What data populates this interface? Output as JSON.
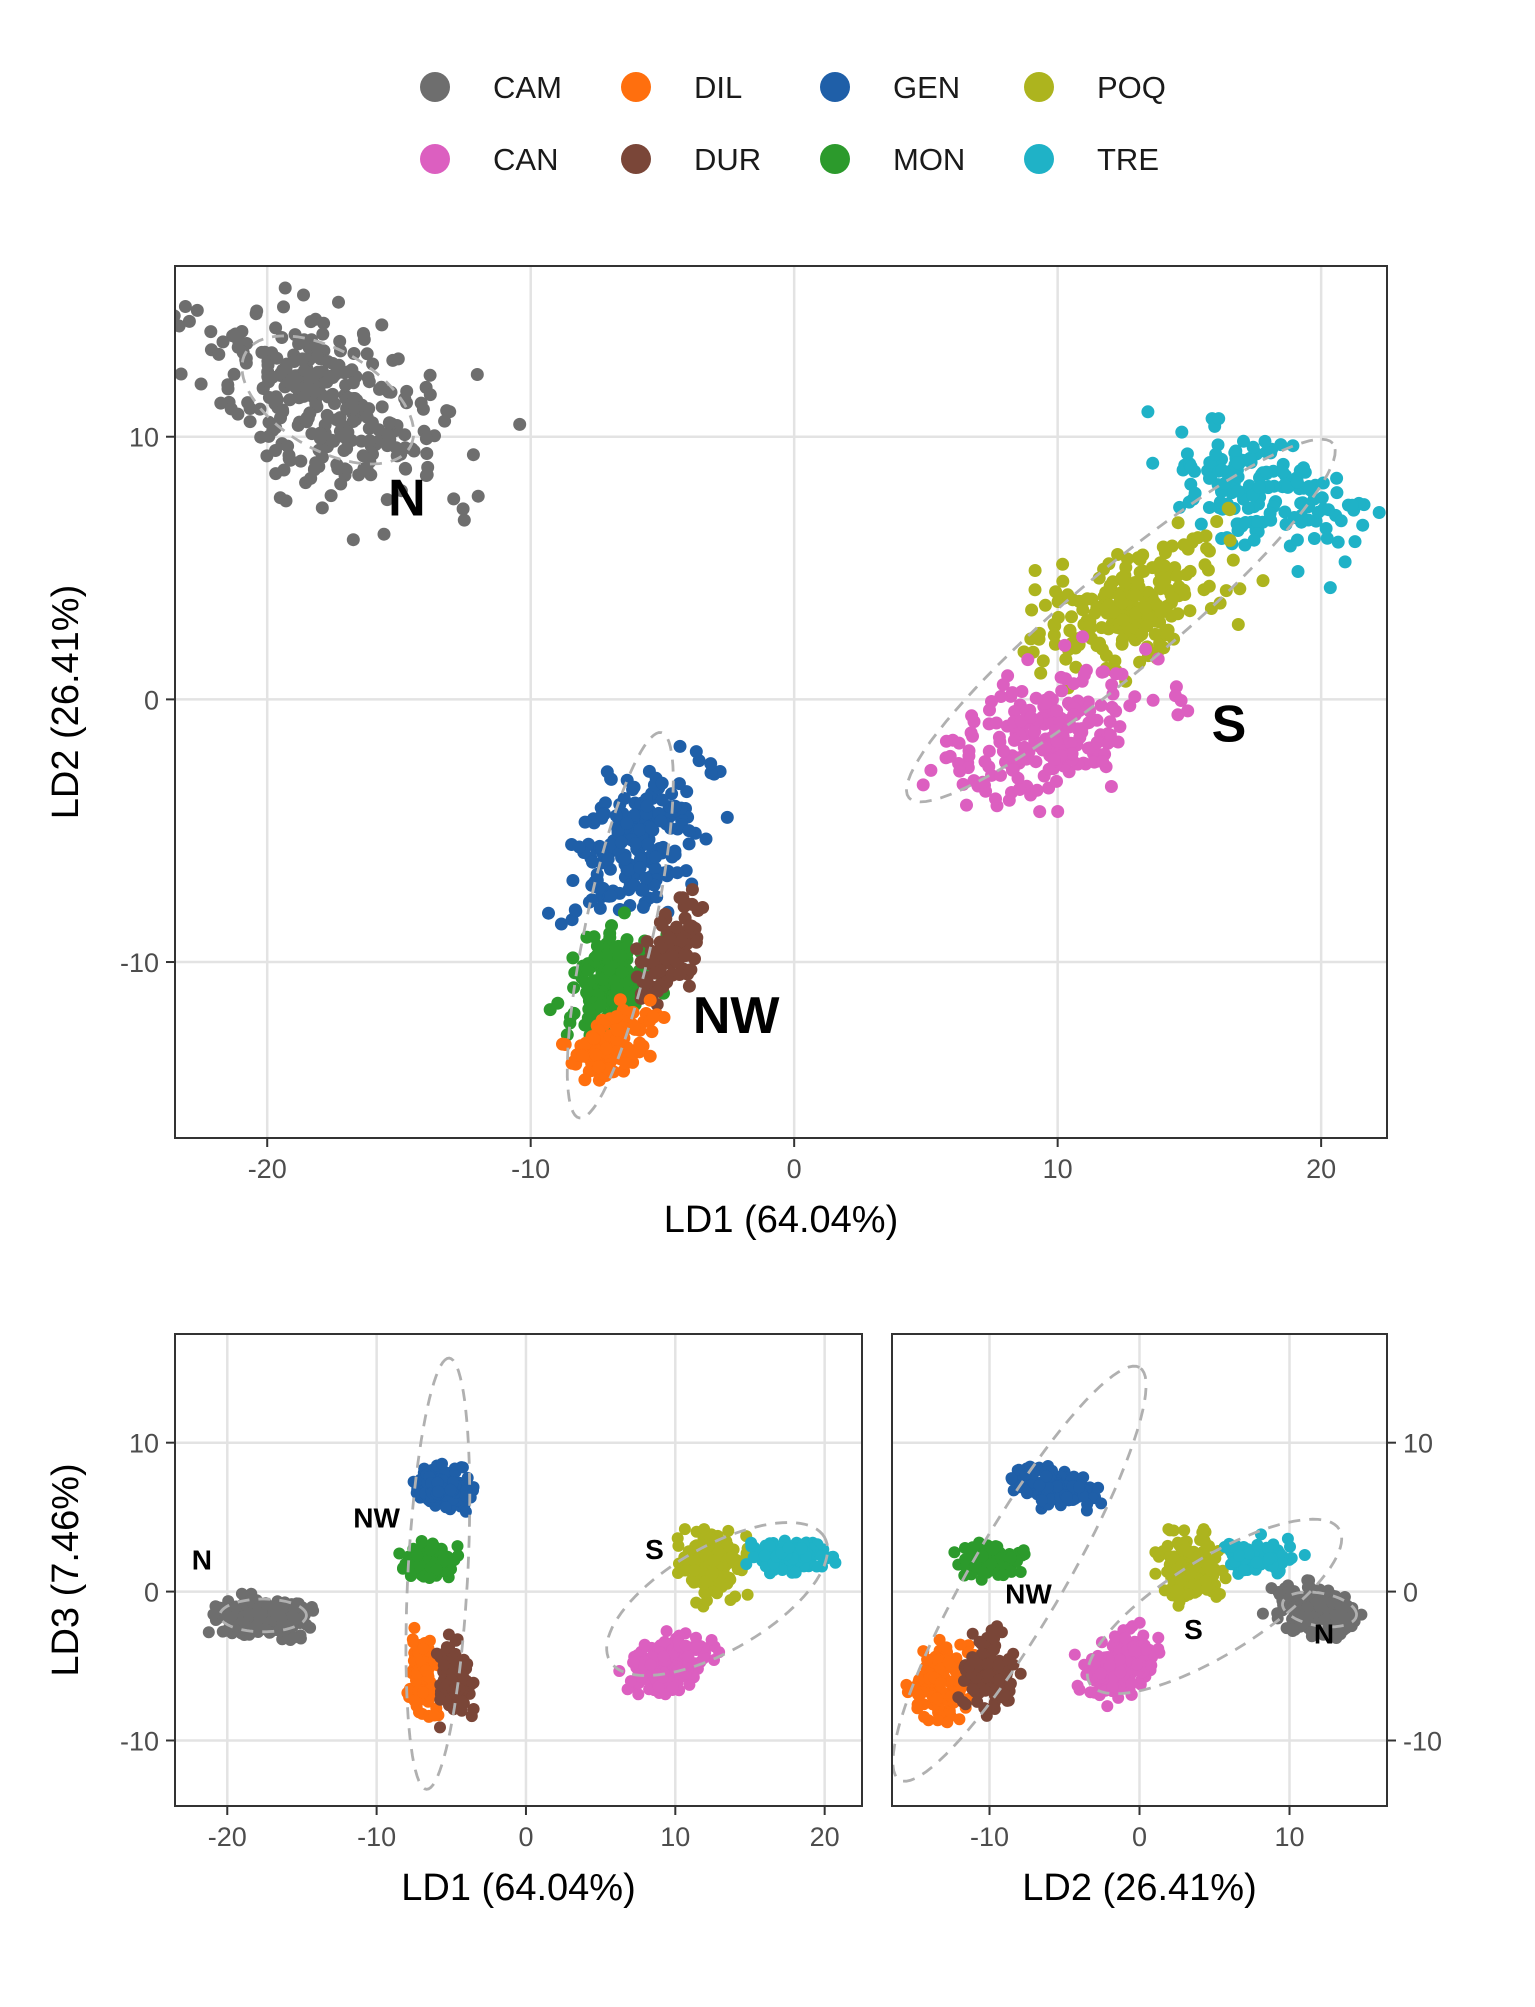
{
  "legend": {
    "position": "top",
    "entries": [
      {
        "label": "CAM",
        "color": "#6e6e6e"
      },
      {
        "label": "DIL",
        "color": "#ff6f0e"
      },
      {
        "label": "GEN",
        "color": "#1f5fa8"
      },
      {
        "label": "POQ",
        "color": "#adb41e"
      },
      {
        "label": "CAN",
        "color": "#dc5fc0"
      },
      {
        "label": "DUR",
        "color": "#7a4638"
      },
      {
        "label": "MON",
        "color": "#2c9a2c"
      },
      {
        "label": "TRE",
        "color": "#1fb2c7"
      }
    ]
  },
  "chart_data": [
    {
      "type": "scatter",
      "xlabel": "LD1 (64.04%)",
      "ylabel": "LD2 (26.41%)",
      "xlim": [
        -23.5,
        22.5
      ],
      "ylim": [
        -16.7,
        16.5
      ],
      "xticks": [
        -20,
        -10,
        0,
        10,
        20
      ],
      "yticks": [
        -10,
        0,
        10
      ],
      "grid": true,
      "clusters": [
        {
          "name": "CAM",
          "cx": -17.8,
          "cy": 11.2,
          "sx": 2.6,
          "sy": 1.5,
          "rot": -30,
          "n": 300
        },
        {
          "name": "TRE",
          "cx": 17.8,
          "cy": 7.9,
          "sx": 2.0,
          "sy": 1.0,
          "rot": -22,
          "n": 160
        },
        {
          "name": "POQ",
          "cx": 12.6,
          "cy": 3.5,
          "sx": 2.0,
          "sy": 1.0,
          "rot": 22,
          "n": 220
        },
        {
          "name": "CAN",
          "cx": 9.6,
          "cy": -1.3,
          "sx": 2.0,
          "sy": 1.1,
          "rot": 25,
          "n": 220
        },
        {
          "name": "GEN",
          "cx": -6.0,
          "cy": -5.5,
          "sx": 1.6,
          "sy": 1.0,
          "rot": 50,
          "n": 200
        },
        {
          "name": "MON",
          "cx": -7.0,
          "cy": -10.7,
          "sx": 1.0,
          "sy": 0.8,
          "rot": 60,
          "n": 150
        },
        {
          "name": "DUR",
          "cx": -4.6,
          "cy": -9.4,
          "sx": 0.9,
          "sy": 0.5,
          "rot": 60,
          "n": 100
        },
        {
          "name": "DIL",
          "cx": -7.0,
          "cy": -13.3,
          "sx": 1.0,
          "sy": 0.5,
          "rot": 35,
          "n": 120
        }
      ],
      "ellipses": [
        {
          "cx": -17.7,
          "cy": 11.4,
          "rx": 3.6,
          "ry": 1.9,
          "rot": -30
        },
        {
          "cx": 12.4,
          "cy": 3.0,
          "rx": 10.5,
          "ry": 1.9,
          "rot": 40
        },
        {
          "cx": -6.6,
          "cy": -8.6,
          "rx": 7.5,
          "ry": 1.3,
          "rot": 78
        }
      ],
      "annotations": [
        {
          "text": "N",
          "x": -14.7,
          "y": 7.0,
          "size": 52
        },
        {
          "text": "S",
          "x": 16.5,
          "y": -1.6,
          "size": 52
        },
        {
          "text": "NW",
          "x": -2.2,
          "y": -12.7,
          "size": 52
        }
      ]
    },
    {
      "type": "scatter",
      "xlabel": "LD1 (64.04%)",
      "ylabel": "LD3 (7.46%)",
      "xlim": [
        -23.5,
        22.5
      ],
      "ylim": [
        -14.4,
        17.3
      ],
      "xticks": [
        -20,
        -10,
        0,
        10,
        20
      ],
      "yticks": [
        -10,
        0,
        10
      ],
      "grid": true,
      "clusters": [
        {
          "name": "CAM",
          "cx": -17.6,
          "cy": -1.7,
          "sx": 1.4,
          "sy": 0.6,
          "rot": 0,
          "n": 220
        },
        {
          "name": "GEN",
          "cx": -5.6,
          "cy": 7.0,
          "sx": 0.9,
          "sy": 0.6,
          "rot": -10,
          "n": 170
        },
        {
          "name": "MON",
          "cx": -6.4,
          "cy": 2.1,
          "sx": 0.8,
          "sy": 0.5,
          "rot": 0,
          "n": 120
        },
        {
          "name": "DIL",
          "cx": -6.9,
          "cy": -5.6,
          "sx": 0.4,
          "sy": 1.3,
          "rot": 0,
          "n": 110
        },
        {
          "name": "DUR",
          "cx": -4.8,
          "cy": -6.0,
          "sx": 0.5,
          "sy": 1.2,
          "rot": 0,
          "n": 110
        },
        {
          "name": "POQ",
          "cx": 12.5,
          "cy": 1.6,
          "sx": 0.9,
          "sy": 1.0,
          "rot": 0,
          "n": 180
        },
        {
          "name": "TRE",
          "cx": 17.8,
          "cy": 2.3,
          "sx": 1.2,
          "sy": 0.5,
          "rot": 0,
          "n": 130
        },
        {
          "name": "CAN",
          "cx": 9.6,
          "cy": -4.8,
          "sx": 1.3,
          "sy": 0.8,
          "rot": 20,
          "n": 190
        }
      ],
      "ellipses": [
        {
          "cx": -17.6,
          "cy": -1.6,
          "rx": 2.9,
          "ry": 1.1,
          "rot": 0
        },
        {
          "cx": -5.9,
          "cy": 1.2,
          "rx": 14.5,
          "ry": 2.0,
          "rot": 87
        },
        {
          "cx": 12.8,
          "cy": -0.5,
          "rx": 8.3,
          "ry": 3.5,
          "rot": 30
        }
      ],
      "annotations": [
        {
          "text": "N",
          "x": -21.7,
          "y": 1.5,
          "size": 28
        },
        {
          "text": "NW",
          "x": -10.0,
          "y": 4.3,
          "size": 28
        },
        {
          "text": "S",
          "x": 8.6,
          "y": 2.2,
          "size": 28
        }
      ]
    },
    {
      "type": "scatter",
      "xlabel": "LD2 (26.41%)",
      "ylabel": "",
      "xlim": [
        -16.5,
        16.5
      ],
      "ylim": [
        -14.4,
        17.3
      ],
      "xticks": [
        -10,
        0,
        10
      ],
      "yticks": [
        -10,
        0,
        10
      ],
      "y_axis_side": "right",
      "grid": true,
      "clusters": [
        {
          "name": "GEN",
          "cx": -5.8,
          "cy": 7.0,
          "sx": 1.3,
          "sy": 0.6,
          "rot": -10,
          "n": 170
        },
        {
          "name": "MON",
          "cx": -10.0,
          "cy": 2.1,
          "sx": 0.9,
          "sy": 0.5,
          "rot": 0,
          "n": 120
        },
        {
          "name": "DIL",
          "cx": -13.2,
          "cy": -6.2,
          "sx": 0.9,
          "sy": 1.2,
          "rot": 0,
          "n": 120
        },
        {
          "name": "DUR",
          "cx": -10.0,
          "cy": -5.6,
          "sx": 0.8,
          "sy": 1.3,
          "rot": 0,
          "n": 120
        },
        {
          "name": "POQ",
          "cx": 3.4,
          "cy": 1.6,
          "sx": 0.9,
          "sy": 1.0,
          "rot": 0,
          "n": 180
        },
        {
          "name": "TRE",
          "cx": 8.0,
          "cy": 2.3,
          "sx": 1.2,
          "sy": 0.6,
          "rot": 0,
          "n": 130
        },
        {
          "name": "CAN",
          "cx": -1.3,
          "cy": -5.0,
          "sx": 1.2,
          "sy": 0.8,
          "rot": 25,
          "n": 190
        },
        {
          "name": "CAM",
          "cx": 11.8,
          "cy": -1.2,
          "sx": 1.3,
          "sy": 0.7,
          "rot": -15,
          "n": 220
        }
      ],
      "ellipses": [
        {
          "cx": -8.0,
          "cy": 1.2,
          "rx": 16.0,
          "ry": 3.1,
          "rot": 60
        },
        {
          "cx": 5.0,
          "cy": -1.0,
          "rx": 9.8,
          "ry": 3.2,
          "rot": 32
        },
        {
          "cx": 12.0,
          "cy": -1.2,
          "rx": 2.5,
          "ry": 1.1,
          "rot": -10
        }
      ],
      "annotations": [
        {
          "text": "NW",
          "x": -7.4,
          "y": -0.8,
          "size": 28
        },
        {
          "text": "S",
          "x": 3.6,
          "y": -3.2,
          "size": 28
        },
        {
          "text": "N",
          "x": 12.3,
          "y": -3.5,
          "size": 28
        }
      ]
    }
  ]
}
